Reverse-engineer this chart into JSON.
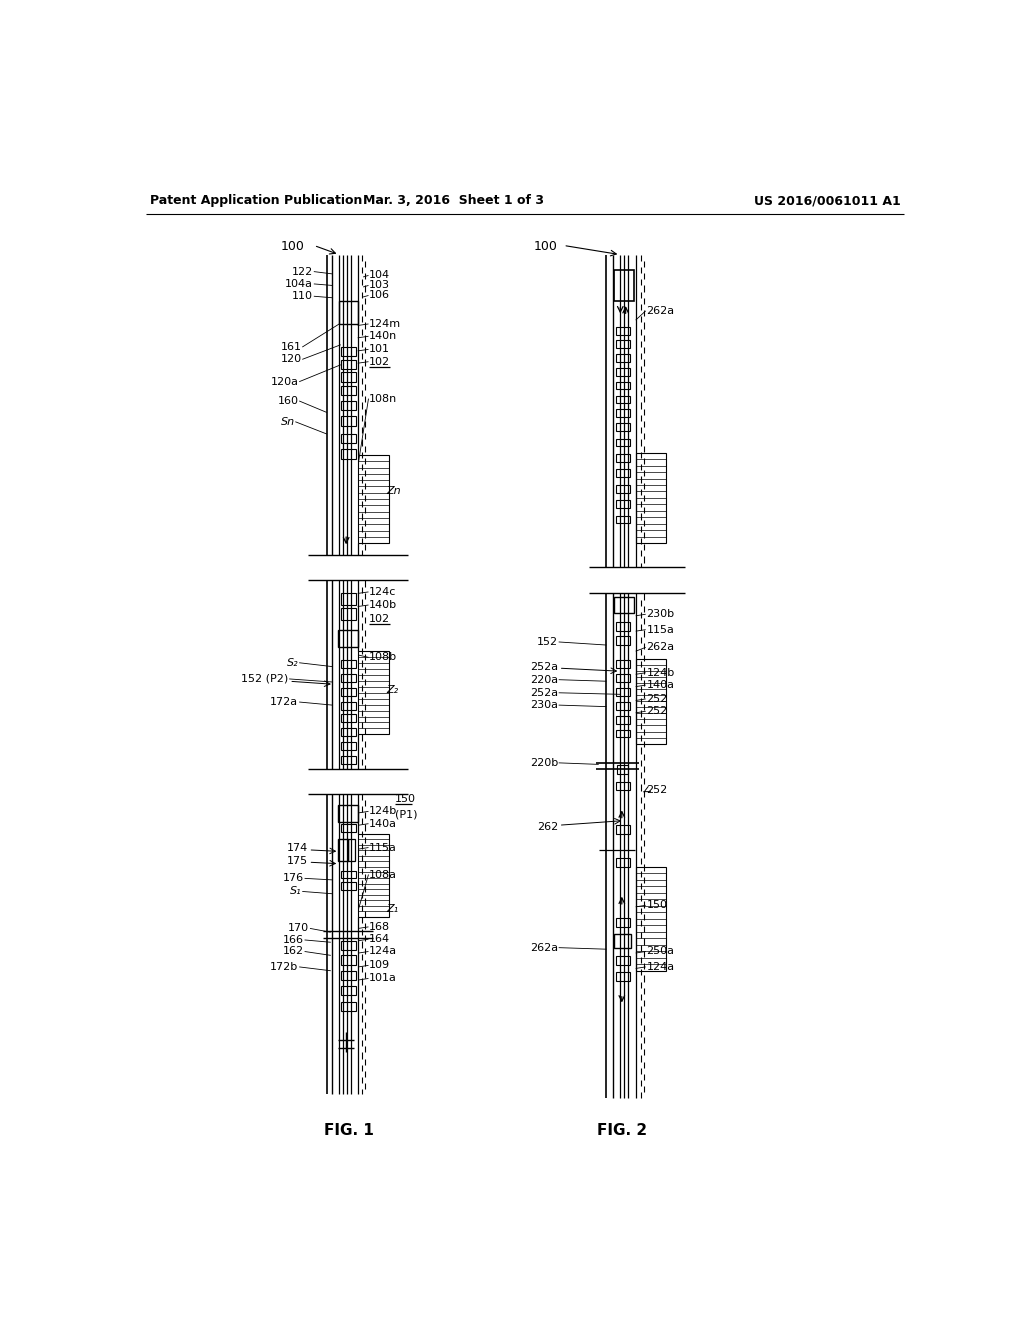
{
  "background_color": "#ffffff",
  "header_left": "Patent Application Publication",
  "header_center": "Mar. 3, 2016  Sheet 1 of 3",
  "header_right": "US 2016/0061011 A1",
  "fig1_label": "FIG. 1",
  "fig2_label": "FIG. 2"
}
